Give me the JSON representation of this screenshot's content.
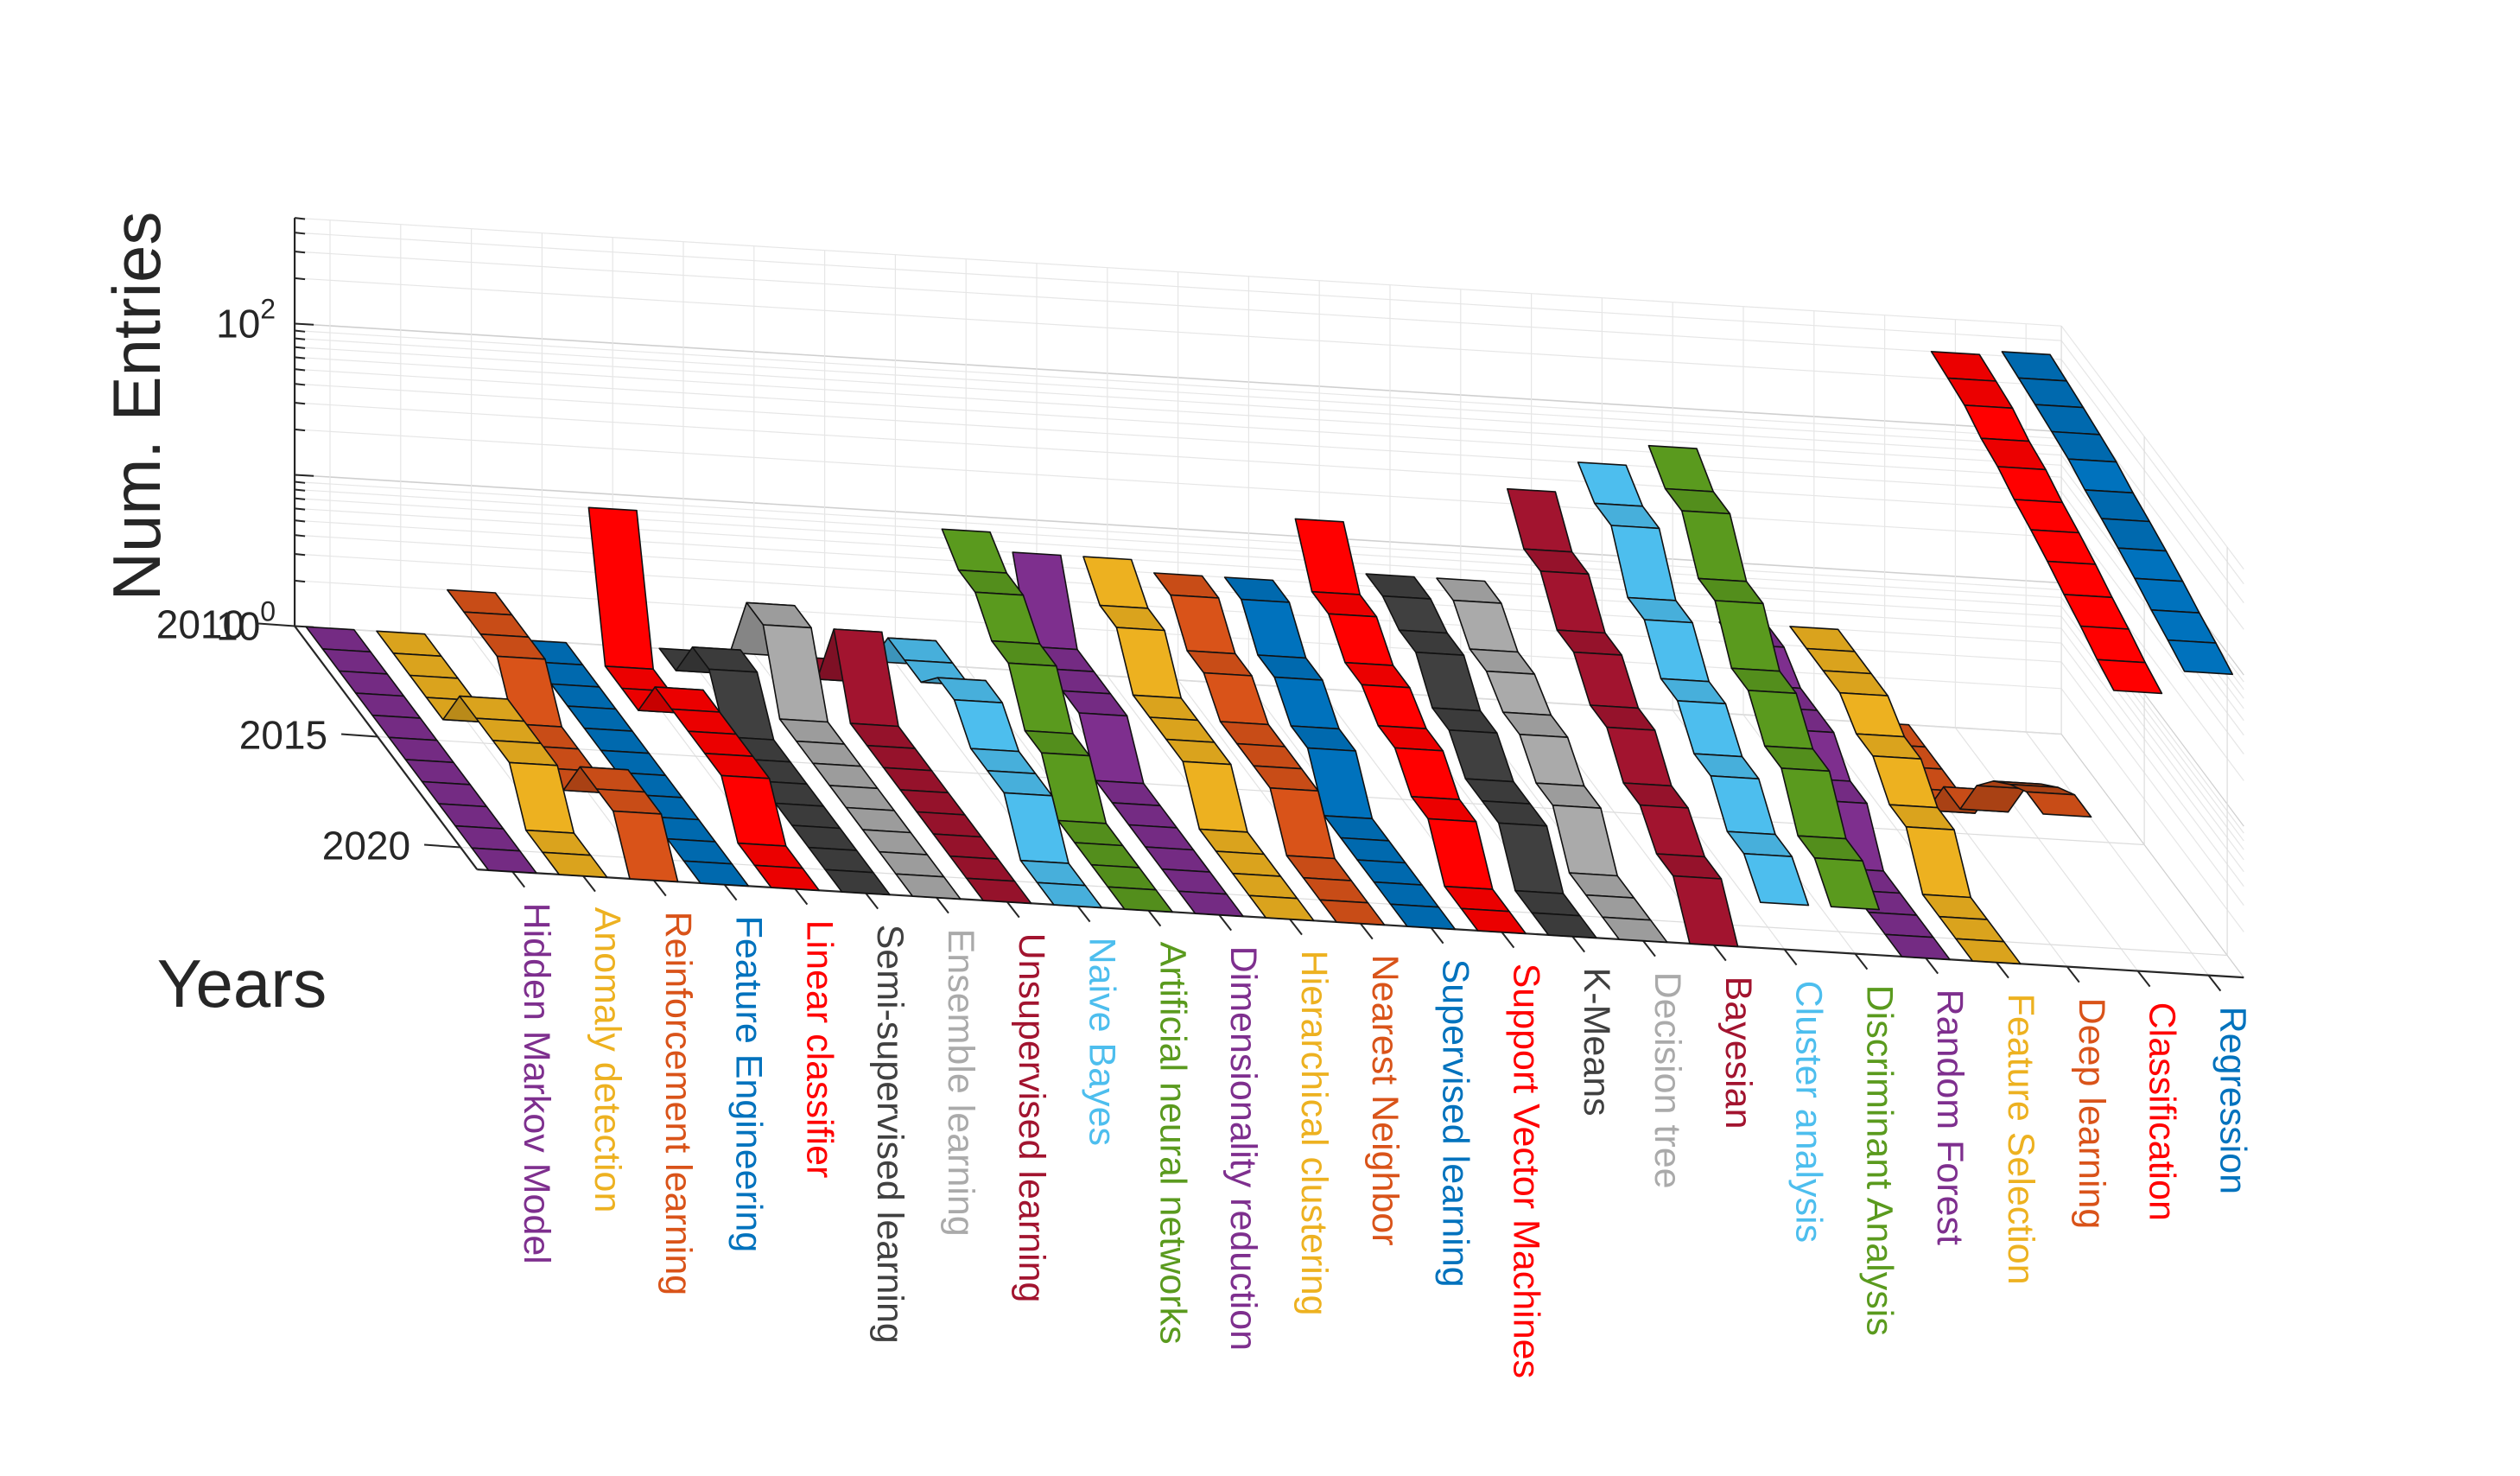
{
  "chart_data": {
    "type": "ribbon3d",
    "zlabel": "Num. Entries",
    "ylabel": "Years",
    "zscale": "log",
    "zlim": [
      1,
      500
    ],
    "zticks": [
      {
        "value": 1,
        "base": "10",
        "exp": "0"
      },
      {
        "value": 100,
        "base": "10",
        "exp": "2"
      }
    ],
    "years": [
      2010,
      2011,
      2012,
      2013,
      2014,
      2015,
      2016,
      2017,
      2018,
      2019,
      2020,
      2021
    ],
    "year_ticks": [
      "2010",
      "2015",
      "2020"
    ],
    "grid": true,
    "series": [
      {
        "name": "Hidden Markov Model",
        "color": "#7E2F8E",
        "values": [
          1,
          1,
          1,
          1,
          1,
          1,
          1,
          1,
          1,
          1,
          1,
          1
        ]
      },
      {
        "name": "Anomaly detection",
        "color": "#EDB120",
        "values": [
          1,
          1,
          1,
          1,
          1,
          2,
          2,
          2,
          2,
          1,
          1,
          1
        ]
      },
      {
        "name": "Reinforcement learning",
        "color": "#D95319",
        "values": [
          2,
          2,
          2,
          2,
          1,
          1,
          1,
          1,
          2,
          2,
          2,
          1
        ]
      },
      {
        "name": "Feature Engineering",
        "color": "#0072BD",
        "values": [
          1,
          1,
          1,
          1,
          1,
          1,
          1,
          1,
          1,
          1,
          1,
          1
        ]
      },
      {
        "name": "Linear classifier",
        "color": "#FF0000",
        "values": [
          8,
          1,
          1,
          1,
          2,
          2,
          2,
          2,
          2,
          1,
          1,
          1
        ]
      },
      {
        "name": "Semi-supervised learning",
        "color": "#404040",
        "values": [
          1,
          1,
          2,
          2,
          1,
          1,
          1,
          1,
          1,
          1,
          1,
          1
        ]
      },
      {
        "name": "Ensemble learning",
        "color": "#AAAAAA",
        "values": [
          1,
          3,
          3,
          1,
          1,
          1,
          1,
          1,
          1,
          1,
          1,
          1
        ]
      },
      {
        "name": "Unsupervised learning",
        "color": "#A2142F",
        "values": [
          1,
          1,
          3,
          1,
          1,
          1,
          1,
          1,
          1,
          1,
          1,
          1
        ]
      },
      {
        "name": "Naive Bayes",
        "color": "#4DBEEE",
        "values": [
          1,
          2,
          2,
          2,
          3,
          3,
          2,
          2,
          2,
          1,
          1,
          1
        ]
      },
      {
        "name": "Artificial neural networks",
        "color": "#5A9A1E",
        "values": [
          8,
          6,
          6,
          4,
          4,
          2,
          2,
          1,
          1,
          1,
          1,
          1
        ]
      },
      {
        "name": "Dimensionality reduction",
        "color": "#7E2F8E",
        "values": [
          6,
          2,
          2,
          2,
          2,
          1,
          1,
          1,
          1,
          1,
          1,
          1
        ]
      },
      {
        "name": "Hierarchical clustering",
        "color": "#EDB120",
        "values": [
          6,
          4,
          4,
          2,
          2,
          2,
          2,
          1,
          1,
          1,
          1,
          1
        ]
      },
      {
        "name": "Nearest Neighbor",
        "color": "#D95319",
        "values": [
          5,
          5,
          3,
          3,
          2,
          2,
          2,
          2,
          1,
          1,
          1,
          1
        ]
      },
      {
        "name": "Supervised learning",
        "color": "#0072BD",
        "values": [
          5,
          5,
          3,
          3,
          2,
          2,
          1,
          1,
          1,
          1,
          1,
          1
        ]
      },
      {
        "name": "Support Vector Machines",
        "color": "#FF0000",
        "values": [
          13,
          6,
          6,
          4,
          4,
          3,
          3,
          2,
          2,
          1,
          1,
          1
        ]
      },
      {
        "name": "K-Means",
        "color": "#404040",
        "values": [
          6,
          6,
          5,
          5,
          3,
          3,
          2,
          2,
          2,
          1,
          1,
          1
        ]
      },
      {
        "name": "Decision tree",
        "color": "#AAAAAA",
        "values": [
          6,
          6,
          4,
          4,
          3,
          3,
          2,
          2,
          1,
          1,
          1,
          1
        ]
      },
      {
        "name": "Bayesian",
        "color": "#A2142F",
        "values": [
          25,
          14,
          14,
          8,
          8,
          5,
          5,
          3,
          3,
          2,
          2,
          1
        ]
      },
      {
        "name": "Cluster analysis",
        "color": "#4DBEEE",
        "values": [
          40,
          30,
          30,
          14,
          14,
          8,
          8,
          5,
          5,
          3,
          3,
          2
        ]
      },
      {
        "name": "Discriminant Analysis",
        "color": "#5A9A1E",
        "values": [
          55,
          40,
          40,
          20,
          20,
          10,
          10,
          6,
          6,
          3,
          3,
          2
        ]
      },
      {
        "name": "Random Forest",
        "color": "#7E2F8E",
        "values": [
          4,
          4,
          3,
          3,
          3,
          2,
          2,
          1,
          1,
          1,
          1,
          1
        ]
      },
      {
        "name": "Feature Selection",
        "color": "#EDB120",
        "values": [
          4,
          4,
          4,
          4,
          3,
          3,
          2,
          2,
          1,
          1,
          1,
          1
        ]
      },
      {
        "name": "Deep learning",
        "color": "#D95319",
        "values": [
          1,
          1,
          1,
          1,
          1,
          2,
          2,
          4,
          6,
          8,
          10,
          10
        ]
      },
      {
        "name": "Classification",
        "color": "#FF0000",
        "values": [
          300,
          280,
          260,
          220,
          200,
          170,
          150,
          130,
          110,
          95,
          80,
          70
        ]
      },
      {
        "name": "Regression",
        "color": "#0072BD",
        "values": [
          320,
          300,
          280,
          260,
          240,
          210,
          190,
          170,
          150,
          130,
          115,
          100
        ]
      }
    ]
  }
}
